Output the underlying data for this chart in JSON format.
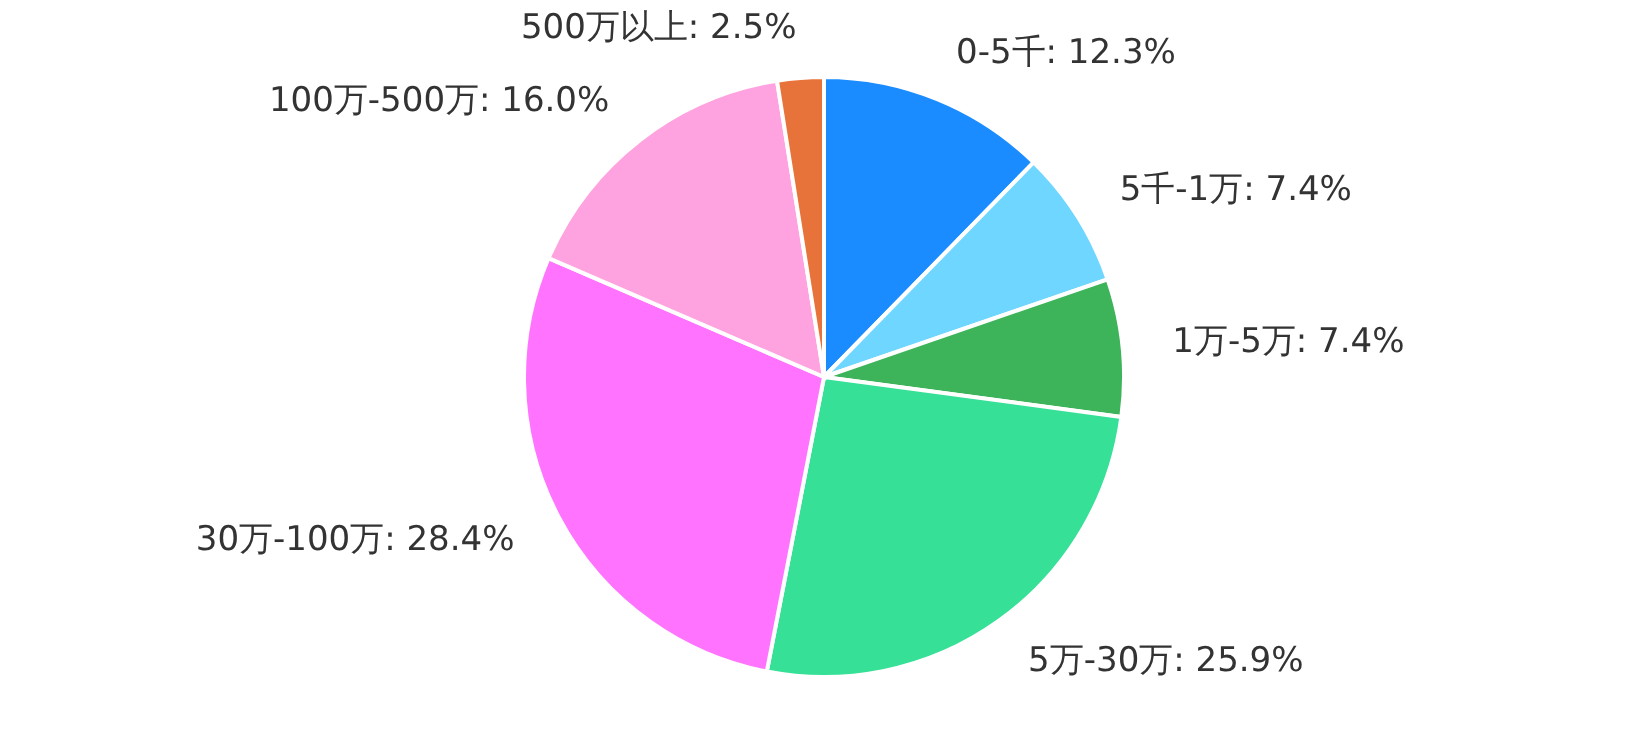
{
  "chart_data": {
    "type": "pie",
    "categories": [
      "0-5千",
      "5千-1万",
      "1万-5万",
      "5万-30万",
      "30万-100万",
      "100万-500万",
      "500万以上"
    ],
    "values": [
      12.3,
      7.4,
      7.4,
      25.9,
      28.4,
      16.0,
      2.5
    ],
    "value_labels": [
      "12.3%",
      "7.4%",
      "7.4%",
      "25.9%",
      "28.4%",
      "16.0%",
      "2.5%"
    ],
    "colors": [
      "#1a8cff",
      "#6fd6ff",
      "#3db35a",
      "#36e096",
      "#ff73ff",
      "#ffa3e0",
      "#e8733a"
    ]
  }
}
